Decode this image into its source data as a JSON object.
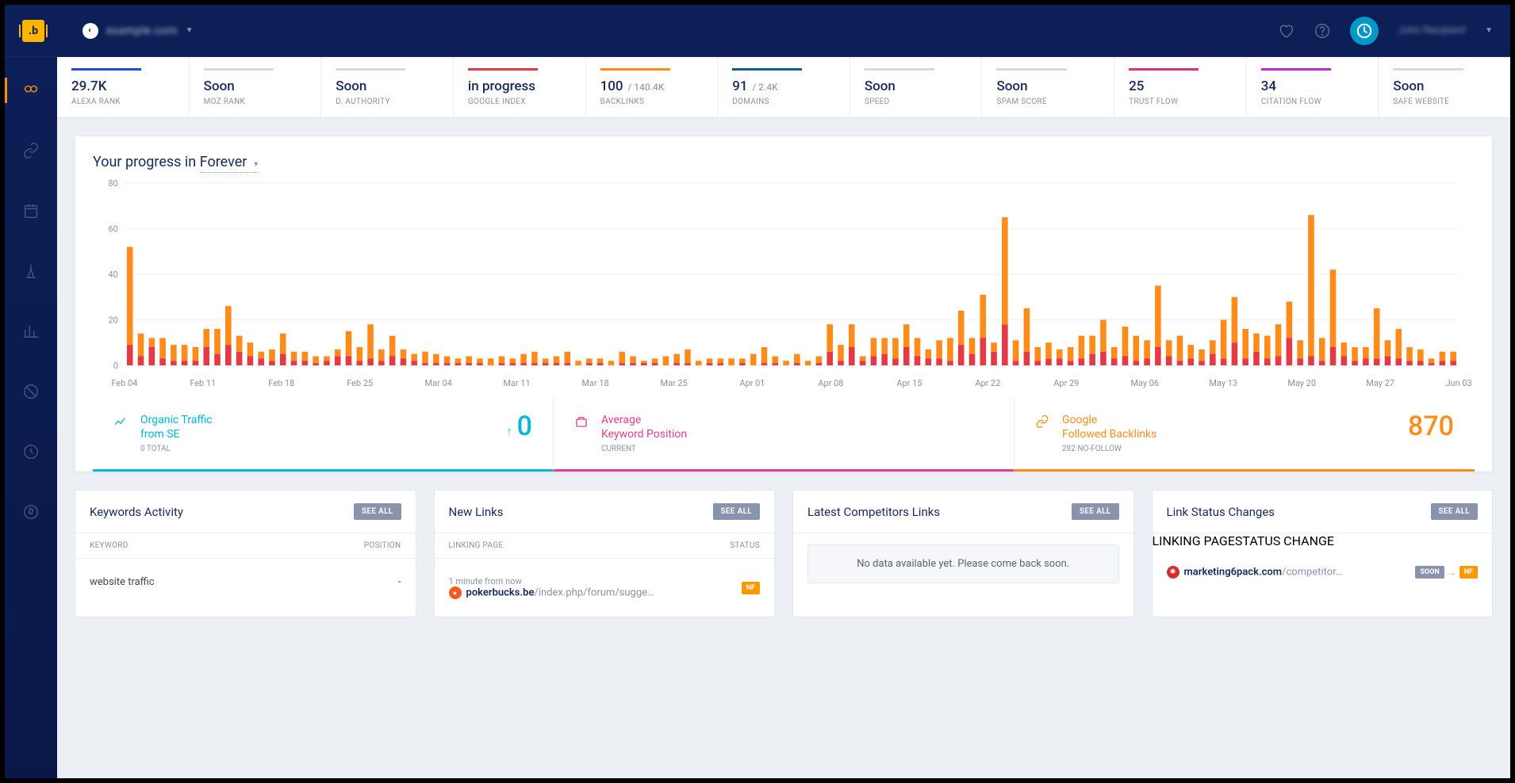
{
  "header": {
    "site_name": "example.com",
    "user_name": "John Recipient"
  },
  "metrics": [
    {
      "value": "29.7K",
      "sub": "",
      "label": "ALEXA RANK",
      "color": "#1f4bd8"
    },
    {
      "value": "Soon",
      "sub": "",
      "label": "MOZ RANK",
      "color": "#d6d9e2"
    },
    {
      "value": "Soon",
      "sub": "",
      "label": "D. AUTHORITY",
      "color": "#d6d9e2"
    },
    {
      "value": "in progress",
      "sub": "",
      "label": "GOOGLE INDEX",
      "color": "#e63946"
    },
    {
      "value": "100",
      "sub": " / 140.4K",
      "label": "BACKLINKS",
      "color": "#ff8c1a"
    },
    {
      "value": "91",
      "sub": " / 2.4K",
      "label": "DOMAINS",
      "color": "#0f5e8c"
    },
    {
      "value": "Soon",
      "sub": "",
      "label": "SPEED",
      "color": "#d6d9e2"
    },
    {
      "value": "Soon",
      "sub": "",
      "label": "SPAM SCORE",
      "color": "#d6d9e2"
    },
    {
      "value": "25",
      "sub": "",
      "label": "TRUST FLOW",
      "color": "#d63384"
    },
    {
      "value": "34",
      "sub": "",
      "label": "CITATION FLOW",
      "color": "#c02bd6"
    },
    {
      "value": "Soon",
      "sub": "",
      "label": "SAFE WEBSITE",
      "color": "#d6d9e2"
    }
  ],
  "progress": {
    "title_prefix": "Your progress in ",
    "period": "Forever",
    "chart": {
      "type": "stacked-bar",
      "ylim": [
        0,
        80
      ],
      "ytick_step": 20,
      "series_colors": {
        "red": "#e63946",
        "orange": "#ff8c1a"
      },
      "grid_color": "#f0f2f6",
      "x_labels": [
        "Feb 04",
        "Feb 11",
        "Feb 18",
        "Feb 25",
        "Mar 04",
        "Mar 11",
        "Mar 18",
        "Mar 25",
        "Apr 01",
        "Apr 08",
        "Apr 15",
        "Apr 22",
        "Apr 29",
        "May 06",
        "May 13",
        "May 20",
        "May 27",
        "Jun 03"
      ],
      "data": [
        {
          "r": 9,
          "o": 43
        },
        {
          "r": 4,
          "o": 10
        },
        {
          "r": 8,
          "o": 4
        },
        {
          "r": 3,
          "o": 9
        },
        {
          "r": 2,
          "o": 7
        },
        {
          "r": 2,
          "o": 7
        },
        {
          "r": 2,
          "o": 6
        },
        {
          "r": 8,
          "o": 8
        },
        {
          "r": 5,
          "o": 11
        },
        {
          "r": 9,
          "o": 17
        },
        {
          "r": 6,
          "o": 7
        },
        {
          "r": 4,
          "o": 6
        },
        {
          "r": 3,
          "o": 3
        },
        {
          "r": 2,
          "o": 5
        },
        {
          "r": 5,
          "o": 9
        },
        {
          "r": 2,
          "o": 4
        },
        {
          "r": 2,
          "o": 4
        },
        {
          "r": 1,
          "o": 3
        },
        {
          "r": 2,
          "o": 2
        },
        {
          "r": 4,
          "o": 3
        },
        {
          "r": 4,
          "o": 11
        },
        {
          "r": 2,
          "o": 6
        },
        {
          "r": 3,
          "o": 15
        },
        {
          "r": 2,
          "o": 5
        },
        {
          "r": 4,
          "o": 9
        },
        {
          "r": 3,
          "o": 4
        },
        {
          "r": 2,
          "o": 3
        },
        {
          "r": 1,
          "o": 5
        },
        {
          "r": 1,
          "o": 4
        },
        {
          "r": 1,
          "o": 3
        },
        {
          "r": 1,
          "o": 2
        },
        {
          "r": 1,
          "o": 3
        },
        {
          "r": 1,
          "o": 2
        },
        {
          "r": 0,
          "o": 3
        },
        {
          "r": 1,
          "o": 3
        },
        {
          "r": 1,
          "o": 2
        },
        {
          "r": 1,
          "o": 4
        },
        {
          "r": 1,
          "o": 5
        },
        {
          "r": 1,
          "o": 2
        },
        {
          "r": 1,
          "o": 3
        },
        {
          "r": 1,
          "o": 5
        },
        {
          "r": 0,
          "o": 2
        },
        {
          "r": 1,
          "o": 2
        },
        {
          "r": 1,
          "o": 2
        },
        {
          "r": 0,
          "o": 2
        },
        {
          "r": 1,
          "o": 5
        },
        {
          "r": 1,
          "o": 3
        },
        {
          "r": 1,
          "o": 1
        },
        {
          "r": 1,
          "o": 2
        },
        {
          "r": 0,
          "o": 4
        },
        {
          "r": 1,
          "o": 4
        },
        {
          "r": 1,
          "o": 6
        },
        {
          "r": 0,
          "o": 2
        },
        {
          "r": 1,
          "o": 2
        },
        {
          "r": 1,
          "o": 2
        },
        {
          "r": 0,
          "o": 3
        },
        {
          "r": 1,
          "o": 2
        },
        {
          "r": 0,
          "o": 5
        },
        {
          "r": 1,
          "o": 7
        },
        {
          "r": 1,
          "o": 3
        },
        {
          "r": 0,
          "o": 2
        },
        {
          "r": 1,
          "o": 4
        },
        {
          "r": 0,
          "o": 2
        },
        {
          "r": 1,
          "o": 3
        },
        {
          "r": 6,
          "o": 12
        },
        {
          "r": 2,
          "o": 7
        },
        {
          "r": 8,
          "o": 10
        },
        {
          "r": 2,
          "o": 2
        },
        {
          "r": 4,
          "o": 8
        },
        {
          "r": 5,
          "o": 7
        },
        {
          "r": 3,
          "o": 9
        },
        {
          "r": 8,
          "o": 10
        },
        {
          "r": 4,
          "o": 8
        },
        {
          "r": 3,
          "o": 4
        },
        {
          "r": 3,
          "o": 8
        },
        {
          "r": 2,
          "o": 10
        },
        {
          "r": 9,
          "o": 15
        },
        {
          "r": 5,
          "o": 7
        },
        {
          "r": 12,
          "o": 19
        },
        {
          "r": 6,
          "o": 4
        },
        {
          "r": 18,
          "o": 47
        },
        {
          "r": 2,
          "o": 9
        },
        {
          "r": 6,
          "o": 19
        },
        {
          "r": 2,
          "o": 6
        },
        {
          "r": 3,
          "o": 7
        },
        {
          "r": 3,
          "o": 4
        },
        {
          "r": 2,
          "o": 6
        },
        {
          "r": 3,
          "o": 10
        },
        {
          "r": 5,
          "o": 8
        },
        {
          "r": 6,
          "o": 14
        },
        {
          "r": 3,
          "o": 5
        },
        {
          "r": 4,
          "o": 13
        },
        {
          "r": 2,
          "o": 11
        },
        {
          "r": 3,
          "o": 8
        },
        {
          "r": 8,
          "o": 27
        },
        {
          "r": 4,
          "o": 7
        },
        {
          "r": 2,
          "o": 11
        },
        {
          "r": 3,
          "o": 6
        },
        {
          "r": 2,
          "o": 5
        },
        {
          "r": 5,
          "o": 6
        },
        {
          "r": 3,
          "o": 17
        },
        {
          "r": 10,
          "o": 20
        },
        {
          "r": 3,
          "o": 13
        },
        {
          "r": 6,
          "o": 8
        },
        {
          "r": 3,
          "o": 10
        },
        {
          "r": 4,
          "o": 14
        },
        {
          "r": 12,
          "o": 16
        },
        {
          "r": 3,
          "o": 8
        },
        {
          "r": 4,
          "o": 62
        },
        {
          "r": 2,
          "o": 10
        },
        {
          "r": 8,
          "o": 34
        },
        {
          "r": 4,
          "o": 6
        },
        {
          "r": 2,
          "o": 6
        },
        {
          "r": 3,
          "o": 5
        },
        {
          "r": 3,
          "o": 22
        },
        {
          "r": 4,
          "o": 7
        },
        {
          "r": 3,
          "o": 13
        },
        {
          "r": 2,
          "o": 6
        },
        {
          "r": 2,
          "o": 5
        },
        {
          "r": 1,
          "o": 2
        },
        {
          "r": 2,
          "o": 4
        },
        {
          "r": 2,
          "o": 4
        }
      ]
    }
  },
  "summaries": [
    {
      "class": "cyan",
      "title1": "Organic Traffic",
      "title2": "from SE",
      "sub": "0 TOTAL",
      "big": "0",
      "arrow": true
    },
    {
      "class": "pink",
      "title1": "Average",
      "title2": "Keyword Position",
      "sub": "CURRENT",
      "big": "",
      "arrow": false
    },
    {
      "class": "orange",
      "title1": "Google",
      "title2": "Followed Backlinks",
      "sub": "282 NO-FOLLOW",
      "big": "870",
      "arrow": false
    }
  ],
  "cards": {
    "keywords": {
      "title": "Keywords Activity",
      "col1": "KEYWORD",
      "col2": "POSITION",
      "row_kw": "website traffic",
      "row_pos": "-"
    },
    "newlinks": {
      "title": "New Links",
      "col1": "LINKING PAGE",
      "col2": "STATUS",
      "time": "1 minute from now",
      "domain": "pokerbucks.be",
      "path": "/index.php/forum/sugge…",
      "badge": "NF"
    },
    "competitors": {
      "title": "Latest Competitors Links",
      "no_data": "No data available yet. Please come back soon."
    },
    "status": {
      "title": "Link Status Changes",
      "col1": "LINKING PAGE",
      "col2": "STATUS CHANGE",
      "domain": "marketing6pack.com",
      "path": "/competitor…",
      "badge1": "SOON",
      "badge2": "NF"
    },
    "see_all": "SEE ALL"
  }
}
